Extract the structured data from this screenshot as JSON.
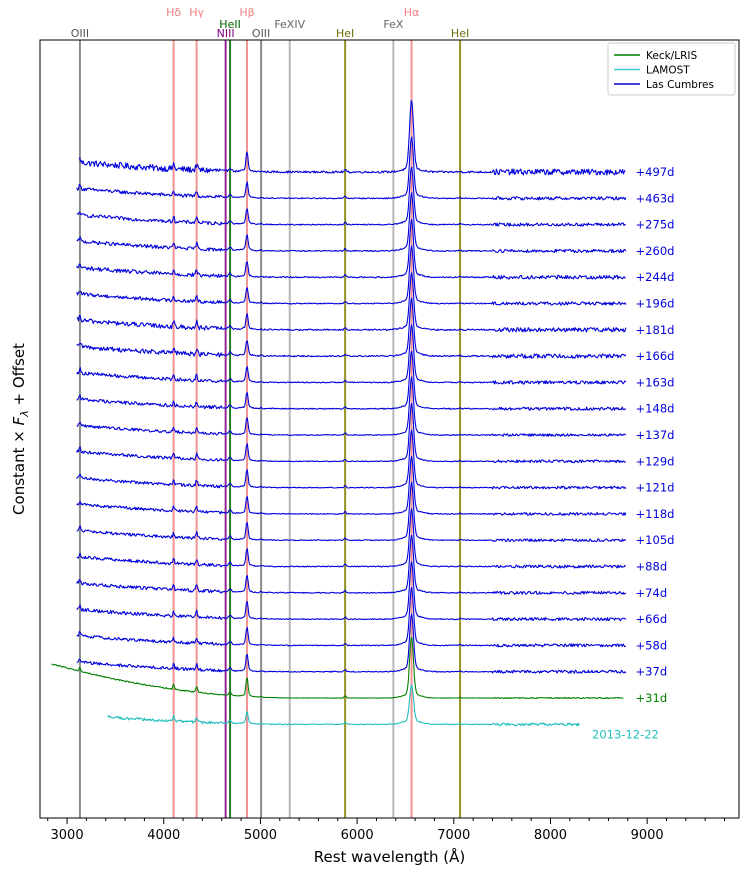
{
  "chart_data": {
    "type": "line",
    "xlabel": "Rest wavelength (Å)",
    "ylabel_prefix": "Constant × ",
    "ylabel_var": "F",
    "ylabel_sub": "λ",
    "ylabel_suffix": " + Offset",
    "xlim": [
      2720,
      9950
    ],
    "xticks": [
      3000,
      4000,
      5000,
      6000,
      7000,
      8000,
      9000
    ],
    "legend": {
      "placement": "top-right",
      "entries": [
        {
          "name": "Keck/LRIS",
          "color": "#008000"
        },
        {
          "name": "LAMOST",
          "color": "#40cccc"
        },
        {
          "name": "Las Cumbres",
          "color": "#0000cc"
        }
      ]
    },
    "reference_lines": [
      {
        "label": "OIII",
        "wavelength": 3133,
        "color": "#777777",
        "label_color": "#555555",
        "label_row": 2
      },
      {
        "label": "Hδ",
        "wavelength": 4102,
        "color": "#f08080",
        "label_color": "#f08080",
        "label_row": 0
      },
      {
        "label": "Hγ",
        "wavelength": 4340,
        "color": "#f08080",
        "label_color": "#f08080",
        "label_row": 0
      },
      {
        "label": "NIII",
        "wavelength": 4640,
        "color": "#800080",
        "label_color": "#800080",
        "label_row": 2
      },
      {
        "label": "HeII",
        "wavelength": 4686,
        "color": "#006400",
        "label_color": "#006400",
        "label_row": 1
      },
      {
        "label": "Hβ",
        "wavelength": 4861,
        "color": "#f08080",
        "label_color": "#f08080",
        "label_row": 0
      },
      {
        "label": "OIII",
        "wavelength": 5007,
        "color": "#777777",
        "label_color": "#555555",
        "label_row": 2
      },
      {
        "label": "FeXIV",
        "wavelength": 5303,
        "color": "#aaaaaa",
        "label_color": "#666666",
        "label_row": 1
      },
      {
        "label": "HeI",
        "wavelength": 5876,
        "color": "#808000",
        "label_color": "#6b6b00",
        "label_row": 2
      },
      {
        "label": "FeX",
        "wavelength": 6375,
        "color": "#aaaaaa",
        "label_color": "#666666",
        "label_row": 1
      },
      {
        "label": "Hα",
        "wavelength": 6563,
        "color": "#f08080",
        "label_color": "#f08080",
        "label_row": 0
      },
      {
        "label": "HeI",
        "wavelength": 7065,
        "color": "#808000",
        "label_color": "#6b6b00",
        "label_row": 2
      }
    ],
    "series": [
      {
        "name": "+497d",
        "instrument": "Las Cumbres",
        "color": "#0000dd",
        "start": 3130,
        "end": 8780,
        "offset": 0,
        "halpha": 3.8,
        "hbeta": 1.0,
        "noise": 0.22
      },
      {
        "name": "+463d",
        "instrument": "Las Cumbres",
        "color": "#0000dd",
        "start": 3100,
        "end": 8780,
        "offset": 1,
        "halpha": 3.2,
        "hbeta": 0.8,
        "noise": 0.12
      },
      {
        "name": "+275d",
        "instrument": "Las Cumbres",
        "color": "#0000dd",
        "start": 3100,
        "end": 8780,
        "offset": 2,
        "halpha": 3.0,
        "hbeta": 0.8,
        "noise": 0.12
      },
      {
        "name": "+260d",
        "instrument": "Las Cumbres",
        "color": "#0000dd",
        "start": 3100,
        "end": 8780,
        "offset": 3,
        "halpha": 3.0,
        "hbeta": 0.8,
        "noise": 0.12
      },
      {
        "name": "+244d",
        "instrument": "Las Cumbres",
        "color": "#0000dd",
        "start": 3100,
        "end": 8780,
        "offset": 4,
        "halpha": 3.0,
        "hbeta": 0.8,
        "noise": 0.14
      },
      {
        "name": "+196d",
        "instrument": "Las Cumbres",
        "color": "#0000dd",
        "start": 3100,
        "end": 8780,
        "offset": 5,
        "halpha": 3.0,
        "hbeta": 0.8,
        "noise": 0.12
      },
      {
        "name": "+181d",
        "instrument": "Las Cumbres",
        "color": "#0000dd",
        "start": 3100,
        "end": 8780,
        "offset": 6,
        "halpha": 3.0,
        "hbeta": 0.8,
        "noise": 0.16
      },
      {
        "name": "+166d",
        "instrument": "Las Cumbres",
        "color": "#0000dd",
        "start": 3100,
        "end": 8780,
        "offset": 7,
        "halpha": 3.0,
        "hbeta": 0.8,
        "noise": 0.16
      },
      {
        "name": "+163d",
        "instrument": "Las Cumbres",
        "color": "#0000dd",
        "start": 3100,
        "end": 8780,
        "offset": 8,
        "halpha": 3.0,
        "hbeta": 0.8,
        "noise": 0.12
      },
      {
        "name": "+148d",
        "instrument": "Las Cumbres",
        "color": "#0000dd",
        "start": 3100,
        "end": 8780,
        "offset": 9,
        "halpha": 3.0,
        "hbeta": 0.8,
        "noise": 0.12
      },
      {
        "name": "+137d",
        "instrument": "Las Cumbres",
        "color": "#0000dd",
        "start": 3100,
        "end": 8780,
        "offset": 10,
        "halpha": 3.0,
        "hbeta": 0.9,
        "noise": 0.1
      },
      {
        "name": "+129d",
        "instrument": "Las Cumbres",
        "color": "#0000dd",
        "start": 3100,
        "end": 8780,
        "offset": 11,
        "halpha": 3.0,
        "hbeta": 0.9,
        "noise": 0.1
      },
      {
        "name": "+121d",
        "instrument": "Las Cumbres",
        "color": "#0000dd",
        "start": 3100,
        "end": 8780,
        "offset": 12,
        "halpha": 3.0,
        "hbeta": 0.9,
        "noise": 0.1
      },
      {
        "name": "+118d",
        "instrument": "Las Cumbres",
        "color": "#0000dd",
        "start": 3100,
        "end": 8780,
        "offset": 13,
        "halpha": 3.0,
        "hbeta": 0.9,
        "noise": 0.1
      },
      {
        "name": "+105d",
        "instrument": "Las Cumbres",
        "color": "#0000dd",
        "start": 3100,
        "end": 8780,
        "offset": 14,
        "halpha": 3.0,
        "hbeta": 0.9,
        "noise": 0.1
      },
      {
        "name": "+88d",
        "instrument": "Las Cumbres",
        "color": "#0000dd",
        "start": 3100,
        "end": 8780,
        "offset": 15,
        "halpha": 3.0,
        "hbeta": 0.9,
        "noise": 0.11
      },
      {
        "name": "+74d",
        "instrument": "Las Cumbres",
        "color": "#0000dd",
        "start": 3100,
        "end": 8780,
        "offset": 16,
        "halpha": 3.0,
        "hbeta": 0.9,
        "noise": 0.11
      },
      {
        "name": "+66d",
        "instrument": "Las Cumbres",
        "color": "#0000dd",
        "start": 3100,
        "end": 8780,
        "offset": 17,
        "halpha": 3.0,
        "hbeta": 0.9,
        "noise": 0.11
      },
      {
        "name": "+58d",
        "instrument": "Las Cumbres",
        "color": "#0000dd",
        "start": 3100,
        "end": 8780,
        "offset": 18,
        "halpha": 3.0,
        "hbeta": 0.9,
        "noise": 0.11
      },
      {
        "name": "+37d",
        "instrument": "Las Cumbres",
        "color": "#0000dd",
        "start": 3100,
        "end": 8780,
        "offset": 19,
        "halpha": 3.0,
        "hbeta": 0.9,
        "noise": 0.11
      },
      {
        "name": "+31d",
        "instrument": "Keck/LRIS",
        "color": "#008000",
        "start": 2840,
        "end": 8760,
        "offset": 20,
        "halpha": 3.2,
        "hbeta": 1.0,
        "noise": 0.04
      },
      {
        "name": "2013-12-22",
        "instrument": "LAMOST",
        "color": "#20bfbf",
        "start": 3420,
        "end": 8300,
        "offset": 21,
        "halpha": 2.0,
        "hbeta": 0.6,
        "noise": 0.1
      }
    ]
  }
}
